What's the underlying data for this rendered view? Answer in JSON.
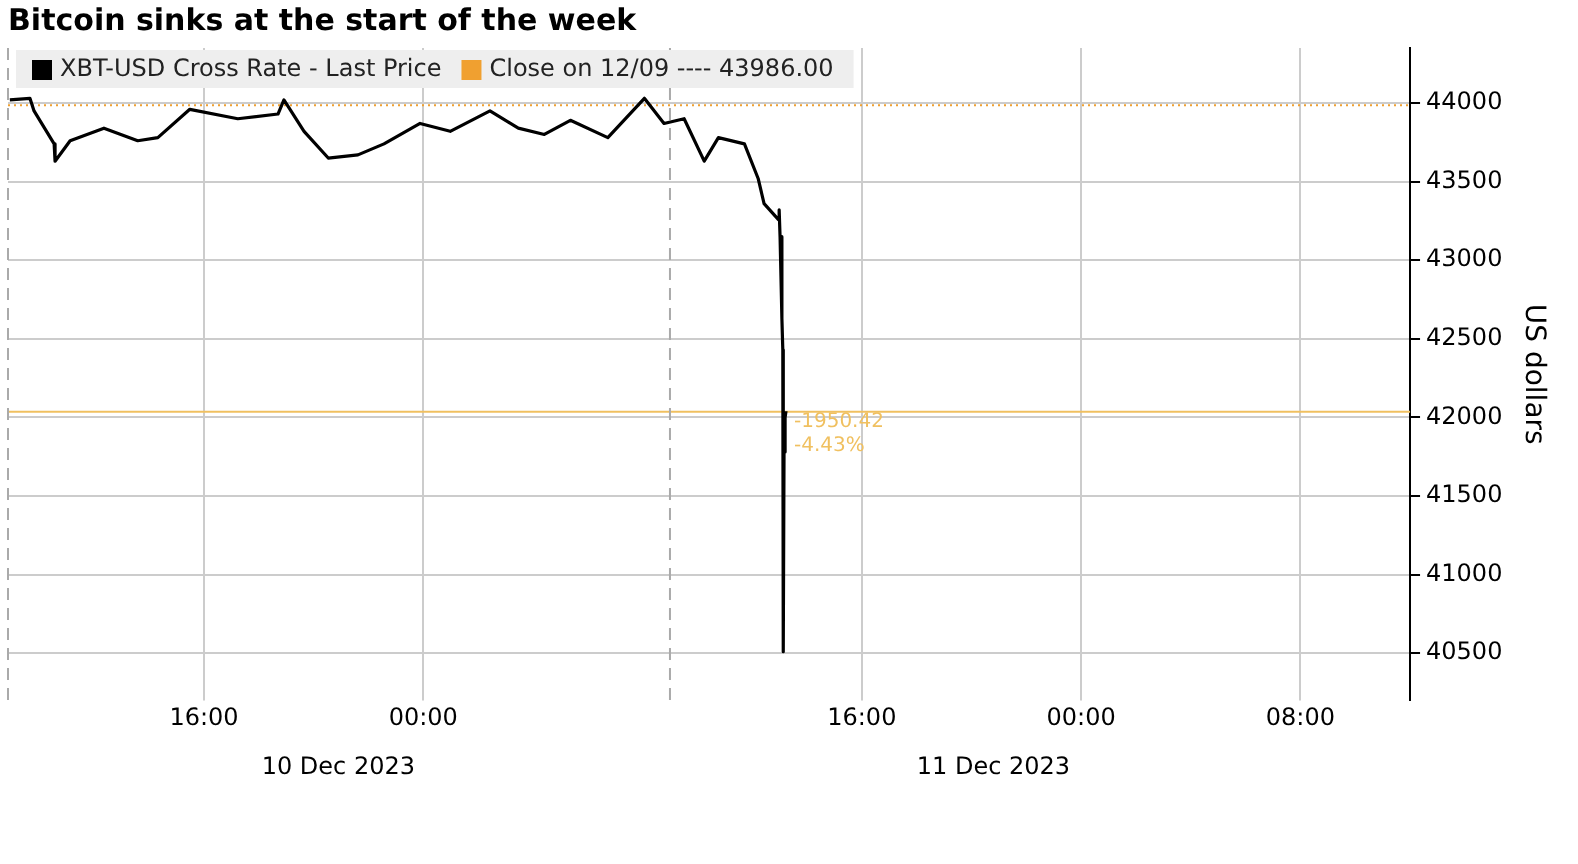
{
  "chart_data": {
    "type": "line",
    "title": "Bitcoin sinks at the start of the week",
    "ylabel": "US dollars",
    "x": [
      "2023-12-10T08:55",
      "2023-12-10T09:39",
      "2023-12-10T09:48",
      "2023-12-10T10:32",
      "2023-12-10T10:34",
      "2023-12-10T11:07",
      "2023-12-10T12:21",
      "2023-12-10T13:35",
      "2023-12-10T14:19",
      "2023-12-10T15:29",
      "2023-12-10T17:14",
      "2023-12-10T18:42",
      "2023-12-10T18:55",
      "2023-12-10T19:39",
      "2023-12-10T20:32",
      "2023-12-10T21:37",
      "2023-12-10T22:34",
      "2023-12-10T23:53",
      "2023-12-11T00:59",
      "2023-12-11T02:26",
      "2023-12-11T03:28",
      "2023-12-11T04:25",
      "2023-12-11T05:22",
      "2023-12-11T06:44",
      "2023-12-11T08:04",
      "2023-12-11T08:47",
      "2023-12-11T09:31",
      "2023-12-11T10:15",
      "2023-12-11T10:46",
      "2023-12-11T11:43",
      "2023-12-11T12:13",
      "2023-12-11T12:26",
      "2023-12-11T12:57",
      "2023-12-11T12:59",
      "2023-12-11T13:01",
      "2023-12-11T13:05",
      "2023-12-11T13:07",
      "2023-12-11T13:08",
      "2023-12-11T13:10",
      "2023-12-11T13:11",
      "2023-12-11T13:13",
      "2023-12-11T13:14"
    ],
    "series": [
      {
        "name": "XBT-USD Cross Rate - Last Price",
        "color": "#000000",
        "values": [
          44020,
          44030,
          43950,
          43740,
          43630,
          43760,
          43840,
          43760,
          43780,
          43960,
          43900,
          43930,
          44020,
          43820,
          43650,
          43670,
          43740,
          43870,
          43820,
          43950,
          43840,
          43800,
          43890,
          43780,
          44030,
          43870,
          43900,
          43630,
          43780,
          43740,
          43520,
          43360,
          43260,
          43320,
          43150,
          42630,
          42430,
          40510,
          42020,
          41780,
          42000,
          42040
        ]
      }
    ],
    "xlim": [
      "2023-12-10T08:51",
      "2023-12-12T12:00"
    ],
    "xticks": [
      {
        "value": "2023-12-10T16:00",
        "label": "16:00"
      },
      {
        "value": "2023-12-11T00:00",
        "label": "00:00"
      },
      {
        "value": "2023-12-11T16:00",
        "label": "16:00"
      },
      {
        "value": "2023-12-12T00:00",
        "label": "00:00"
      },
      {
        "value": "2023-12-12T08:00",
        "label": "08:00"
      }
    ],
    "x2lim": [
      "2023-12-10T08:51",
      "2023-12-12T12:00"
    ],
    "x2ticks": [
      {
        "value": "2023-12-10T20:54",
        "label": "10 Dec 2023"
      },
      {
        "value": "2023-12-11T20:48",
        "label": "11 Dec 2023"
      }
    ],
    "ylim": [
      40200,
      44350
    ],
    "yticks": [
      40500,
      41000,
      41500,
      42000,
      42500,
      43000,
      43500,
      44000
    ],
    "ref_lines": [
      {
        "axis": "y",
        "value": 43986,
        "label": "Close on 12/09 ---- 43986.00",
        "color": "#f0a030",
        "line_style": "dotted"
      },
      {
        "axis": "y",
        "value": 42035.58,
        "color": "#f0c060",
        "line_style": "solid"
      },
      {
        "axis": "x",
        "value": "2023-12-10T08:51",
        "color": "#aaaaaa",
        "line_style": "dashed"
      },
      {
        "axis": "x",
        "value": "2023-12-11T09:00",
        "color": "#aaaaaa",
        "line_style": "dashed"
      }
    ],
    "annotations": [
      {
        "text": "-1950.42",
        "x": "2023-12-11T13:14",
        "y": 42035.58
      },
      {
        "text": "-4.43%",
        "x": "2023-12-11T13:14",
        "y": 41880
      }
    ],
    "grid": true,
    "legend": "top left"
  }
}
